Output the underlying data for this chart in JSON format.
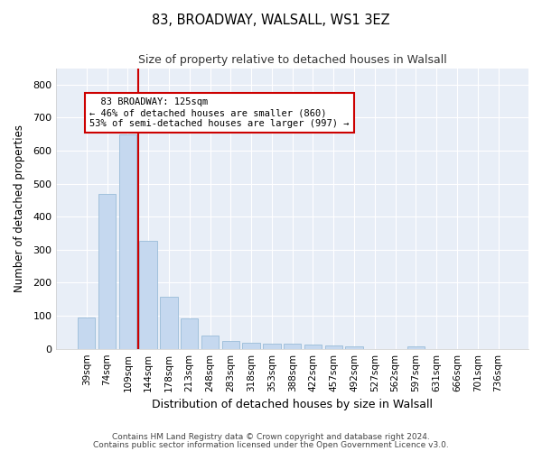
{
  "title": "83, BROADWAY, WALSALL, WS1 3EZ",
  "subtitle": "Size of property relative to detached houses in Walsall",
  "xlabel": "Distribution of detached houses by size in Walsall",
  "ylabel": "Number of detached properties",
  "bar_color": "#c5d8ef",
  "bar_edge_color": "#9abcd8",
  "bg_color": "#e8eef7",
  "grid_color": "#ffffff",
  "annotation_box_color": "#cc0000",
  "annotation_line_color": "#cc0000",
  "categories": [
    "39sqm",
    "74sqm",
    "109sqm",
    "144sqm",
    "178sqm",
    "213sqm",
    "248sqm",
    "283sqm",
    "318sqm",
    "353sqm",
    "388sqm",
    "422sqm",
    "457sqm",
    "492sqm",
    "527sqm",
    "562sqm",
    "597sqm",
    "631sqm",
    "666sqm",
    "701sqm",
    "736sqm"
  ],
  "values": [
    95,
    470,
    648,
    328,
    158,
    92,
    40,
    25,
    18,
    15,
    15,
    13,
    10,
    8,
    0,
    0,
    8,
    0,
    0,
    0,
    0
  ],
  "property_label": "83 BROADWAY: 125sqm",
  "pct_smaller": 46,
  "n_smaller": 860,
  "pct_larger_semi": 53,
  "n_larger_semi": 997,
  "vline_x_idx": 2,
  "ylim": [
    0,
    850
  ],
  "yticks": [
    0,
    100,
    200,
    300,
    400,
    500,
    600,
    700,
    800
  ],
  "footnote1": "Contains HM Land Registry data © Crown copyright and database right 2024.",
  "footnote2": "Contains public sector information licensed under the Open Government Licence v3.0."
}
